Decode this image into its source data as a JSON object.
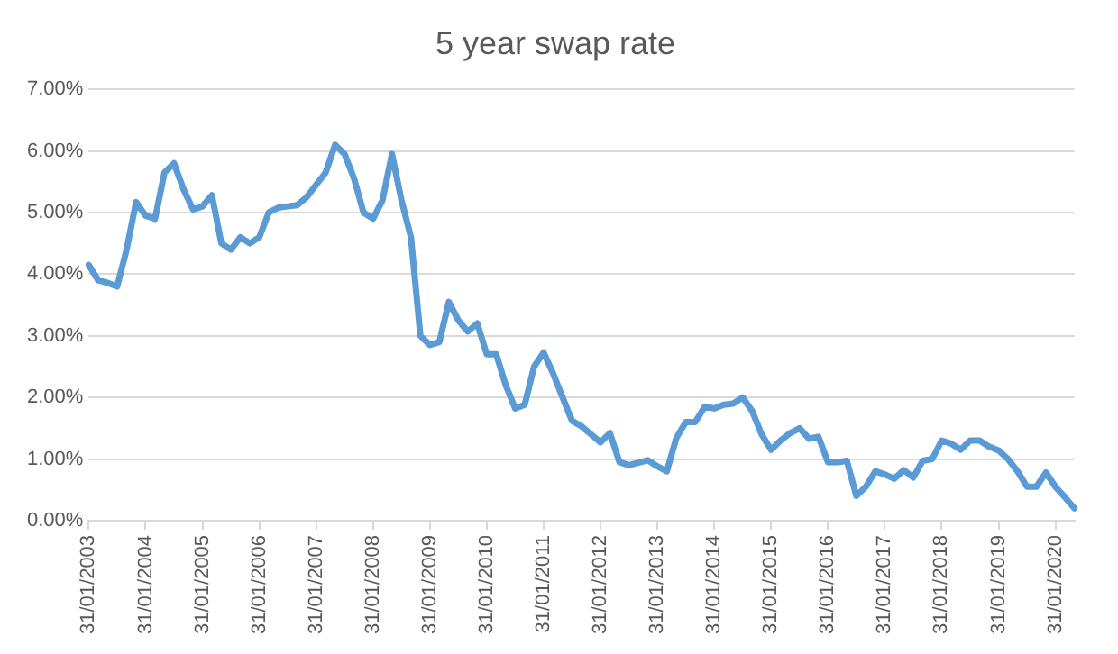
{
  "chart_data": {
    "type": "line",
    "title": "5 year swap rate",
    "categories": [
      "31/01/2003",
      null,
      null,
      null,
      null,
      null,
      "31/01/2004",
      null,
      null,
      null,
      null,
      null,
      "31/01/2005",
      null,
      null,
      null,
      null,
      null,
      "31/01/2006",
      null,
      null,
      null,
      null,
      null,
      "31/01/2007",
      null,
      null,
      null,
      null,
      null,
      "31/01/2008",
      null,
      null,
      null,
      null,
      null,
      "31/01/2009",
      null,
      null,
      null,
      null,
      null,
      "31/01/2010",
      null,
      null,
      null,
      null,
      null,
      "31/01/2011",
      null,
      null,
      null,
      null,
      null,
      "31/01/2012",
      null,
      null,
      null,
      null,
      null,
      "31/01/2013",
      null,
      null,
      null,
      null,
      null,
      "31/01/2014",
      null,
      null,
      null,
      null,
      null,
      "31/01/2015",
      null,
      null,
      null,
      null,
      null,
      "31/01/2016",
      null,
      null,
      null,
      null,
      null,
      "31/01/2017",
      null,
      null,
      null,
      null,
      null,
      "31/01/2018",
      null,
      null,
      null,
      null,
      null,
      "31/01/2019",
      null,
      null,
      null,
      null,
      null,
      "31/01/2020",
      null,
      null
    ],
    "series": [
      {
        "color": "#5b9bd5",
        "values": [
          4.15,
          3.9,
          3.86,
          3.8,
          4.4,
          5.17,
          4.95,
          4.9,
          5.65,
          5.8,
          5.38,
          5.05,
          5.1,
          5.28,
          4.5,
          4.4,
          4.6,
          4.5,
          4.6,
          5.0,
          5.08,
          5.1,
          5.12,
          5.25,
          5.45,
          5.65,
          6.1,
          5.95,
          5.55,
          5.0,
          4.9,
          5.2,
          5.95,
          5.2,
          4.6,
          3.0,
          2.85,
          2.9,
          3.55,
          3.25,
          3.07,
          3.2,
          2.7,
          2.7,
          2.2,
          1.82,
          1.88,
          2.5,
          2.73,
          2.39,
          2.0,
          1.62,
          1.53,
          1.4,
          1.27,
          1.42,
          0.95,
          0.9,
          0.94,
          0.98,
          0.88,
          0.8,
          1.34,
          1.6,
          1.6,
          1.85,
          1.82,
          1.88,
          1.9,
          2.0,
          1.78,
          1.4,
          1.15,
          1.3,
          1.42,
          1.5,
          1.33,
          1.36,
          0.95,
          0.95,
          0.97,
          0.4,
          0.55,
          0.8,
          0.75,
          0.68,
          0.82,
          0.7,
          0.97,
          1.0,
          1.3,
          1.25,
          1.15,
          1.3,
          1.3,
          1.2,
          1.14,
          1.0,
          0.8,
          0.55,
          0.55,
          0.78,
          0.55,
          0.38,
          0.2
        ]
      }
    ],
    "ylim": [
      0,
      7
    ],
    "yticks": [
      {
        "value": 0,
        "label": "0.00%"
      },
      {
        "value": 1,
        "label": "1.00%"
      },
      {
        "value": 2,
        "label": "2.00%"
      },
      {
        "value": 3,
        "label": "3.00%"
      },
      {
        "value": 4,
        "label": "4.00%"
      },
      {
        "value": 5,
        "label": "5.00%"
      },
      {
        "value": 6,
        "label": "6.00%"
      },
      {
        "value": 7,
        "label": "7.00%"
      }
    ],
    "grid": "y",
    "legend": false,
    "marker": "none",
    "line_style": "solid"
  }
}
